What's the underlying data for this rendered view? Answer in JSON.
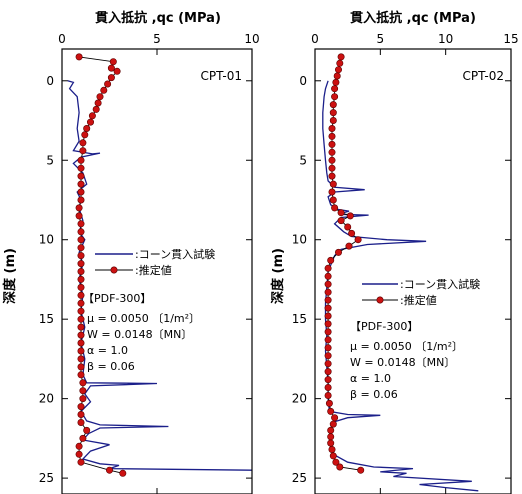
{
  "chart_data": [
    {
      "type": "line",
      "title": "貫入抵抗 ,qc (MPa)",
      "ylabel": "深度 (m)",
      "label": "CPT-01",
      "xlim": [
        0,
        10
      ],
      "ylim": [
        26,
        -2
      ],
      "xticks": [
        0,
        5,
        10
      ],
      "yticks": [
        0,
        5,
        10,
        15,
        20,
        25
      ],
      "grid": false,
      "legend_position": "center-right",
      "series": [
        {
          "name": ":コーン貫入試験",
          "color": "#1b1f8a",
          "marker": "none",
          "points": [
            [
              0.3,
              0
            ],
            [
              0.6,
              0.1
            ],
            [
              0.4,
              0.5
            ],
            [
              0.8,
              1
            ],
            [
              0.9,
              2
            ],
            [
              0.8,
              3
            ],
            [
              0.9,
              3.8
            ],
            [
              0.6,
              4.4
            ],
            [
              1.6,
              4.6
            ],
            [
              2.0,
              4.55
            ],
            [
              1.0,
              4.8
            ],
            [
              0.6,
              5.2
            ],
            [
              1.1,
              5.8
            ],
            [
              1.3,
              6.5
            ],
            [
              0.8,
              7
            ],
            [
              1.0,
              7.5
            ],
            [
              0.9,
              8
            ],
            [
              1.1,
              8.8
            ],
            [
              0.9,
              9.5
            ],
            [
              1.2,
              10
            ],
            [
              0.9,
              10.8
            ],
            [
              1.1,
              11.5
            ],
            [
              0.9,
              12.5
            ],
            [
              1.1,
              13.5
            ],
            [
              1.0,
              14.5
            ],
            [
              1.2,
              15.5
            ],
            [
              1.0,
              16.5
            ],
            [
              1.2,
              17.5
            ],
            [
              1.1,
              18.5
            ],
            [
              1.3,
              19
            ],
            [
              5.0,
              19.05
            ],
            [
              1.5,
              19.2
            ],
            [
              1.2,
              19.7
            ],
            [
              1.5,
              20.2
            ],
            [
              1.0,
              20.8
            ],
            [
              1.3,
              21.4
            ],
            [
              2.0,
              21.65
            ],
            [
              5.6,
              21.75
            ],
            [
              2.0,
              21.85
            ],
            [
              1.4,
              22.2
            ],
            [
              1.1,
              22.6
            ],
            [
              2.5,
              22.9
            ],
            [
              1.5,
              23.3
            ],
            [
              1.1,
              23.8
            ],
            [
              2.0,
              24.1
            ],
            [
              3.0,
              24.2
            ],
            [
              2.5,
              24.4
            ],
            [
              10.0,
              24.5
            ]
          ]
        },
        {
          "name": ":推定値",
          "color": "#cc1111",
          "marker": "circle",
          "points": [
            [
              0.9,
              -1.5
            ],
            [
              2.7,
              -1.2
            ],
            [
              2.6,
              -0.8
            ],
            [
              2.9,
              -0.6
            ],
            [
              2.6,
              -0.2
            ],
            [
              2.4,
              0.2
            ],
            [
              2.2,
              0.6
            ],
            [
              2.0,
              1
            ],
            [
              1.9,
              1.4
            ],
            [
              1.8,
              1.8
            ],
            [
              1.6,
              2.2
            ],
            [
              1.5,
              2.6
            ],
            [
              1.3,
              3
            ],
            [
              1.2,
              3.4
            ],
            [
              1.1,
              3.9
            ],
            [
              1.1,
              4.4
            ],
            [
              1.0,
              5
            ],
            [
              1.0,
              5.5
            ],
            [
              1.0,
              6
            ],
            [
              1.0,
              6.5
            ],
            [
              1.0,
              7
            ],
            [
              1.0,
              7.5
            ],
            [
              0.9,
              8
            ],
            [
              0.9,
              8.5
            ],
            [
              1.0,
              9
            ],
            [
              1.0,
              9.5
            ],
            [
              1.0,
              10
            ],
            [
              1.0,
              10.5
            ],
            [
              1.0,
              11
            ],
            [
              1.0,
              11.5
            ],
            [
              1.0,
              12
            ],
            [
              1.0,
              12.5
            ],
            [
              1.0,
              13
            ],
            [
              1.0,
              13.5
            ],
            [
              1.0,
              14
            ],
            [
              1.0,
              14.5
            ],
            [
              1.0,
              15
            ],
            [
              1.0,
              15.5
            ],
            [
              1.0,
              16
            ],
            [
              1.0,
              16.5
            ],
            [
              1.0,
              17
            ],
            [
              1.0,
              17.5
            ],
            [
              1.0,
              18
            ],
            [
              1.0,
              18.5
            ],
            [
              1.1,
              19
            ],
            [
              1.1,
              19.5
            ],
            [
              1.1,
              20
            ],
            [
              1.0,
              20.5
            ],
            [
              1.0,
              21
            ],
            [
              1.0,
              21.5
            ],
            [
              1.3,
              22
            ],
            [
              1.1,
              22.5
            ],
            [
              0.9,
              23
            ],
            [
              0.9,
              23.5
            ],
            [
              1.0,
              24
            ],
            [
              2.5,
              24.5
            ],
            [
              3.2,
              24.7
            ]
          ]
        }
      ],
      "parameters": [
        "【PDF-300】",
        "μ = 0.0050 〔1/m²〕",
        "W = 0.0148〔MN〕",
        "α = 1.0",
        "β = 0.06"
      ]
    },
    {
      "type": "line",
      "title": "貫入抵抗 ,qc (MPa)",
      "ylabel": "深度 (m)",
      "label": "CPT-02",
      "xlim": [
        0,
        15
      ],
      "ylim": [
        26,
        -2
      ],
      "xticks": [
        0,
        5,
        10,
        15
      ],
      "yticks": [
        0,
        5,
        10,
        15,
        20,
        25
      ],
      "grid": false,
      "legend_position": "center-right",
      "series": [
        {
          "name": ":コーン貫入試験",
          "color": "#1b1f8a",
          "marker": "none",
          "points": [
            [
              1.0,
              0
            ],
            [
              0.8,
              0.5
            ],
            [
              0.7,
              1
            ],
            [
              0.6,
              2
            ],
            [
              0.6,
              3
            ],
            [
              0.7,
              4
            ],
            [
              0.8,
              5
            ],
            [
              0.9,
              5.8
            ],
            [
              1.0,
              6.3
            ],
            [
              1.5,
              6.7
            ],
            [
              3.8,
              6.85
            ],
            [
              1.5,
              7
            ],
            [
              1.0,
              7.3
            ],
            [
              1.2,
              7.8
            ],
            [
              1.8,
              8.1
            ],
            [
              2.6,
              8.2
            ],
            [
              1.8,
              8.4
            ],
            [
              4.1,
              8.45
            ],
            [
              2.0,
              8.6
            ],
            [
              1.5,
              9
            ],
            [
              2.2,
              9.5
            ],
            [
              2.8,
              9.8
            ],
            [
              5.5,
              10
            ],
            [
              8.5,
              10.1
            ],
            [
              4.0,
              10.3
            ],
            [
              2.0,
              10.6
            ],
            [
              1.5,
              11
            ],
            [
              1.0,
              12
            ],
            [
              0.9,
              13
            ],
            [
              0.8,
              14
            ],
            [
              0.8,
              15
            ],
            [
              0.9,
              16
            ],
            [
              0.8,
              17
            ],
            [
              0.9,
              18
            ],
            [
              1.0,
              19
            ],
            [
              1.0,
              20
            ],
            [
              1.1,
              20.8
            ],
            [
              2.5,
              21
            ],
            [
              5.0,
              21.05
            ],
            [
              2.5,
              21.2
            ],
            [
              1.3,
              21.5
            ],
            [
              1.2,
              22
            ],
            [
              1.2,
              22.5
            ],
            [
              1.3,
              23
            ],
            [
              1.4,
              23.5
            ],
            [
              2.5,
              24
            ],
            [
              4.5,
              24.3
            ],
            [
              7.5,
              24.4
            ],
            [
              5.0,
              24.6
            ],
            [
              7.0,
              24.7
            ],
            [
              6.0,
              24.9
            ],
            [
              12.0,
              25.2
            ],
            [
              8.0,
              25.4
            ],
            [
              10.0,
              25.6
            ],
            [
              12.5,
              25.8
            ]
          ]
        },
        {
          "name": ":推定値",
          "color": "#cc1111",
          "marker": "circle",
          "points": [
            [
              2.0,
              -1.5
            ],
            [
              1.9,
              -1.1
            ],
            [
              1.8,
              -0.7
            ],
            [
              1.7,
              -0.3
            ],
            [
              1.6,
              0.1
            ],
            [
              1.5,
              0.5
            ],
            [
              1.5,
              1
            ],
            [
              1.4,
              1.5
            ],
            [
              1.4,
              2
            ],
            [
              1.4,
              2.5
            ],
            [
              1.3,
              3
            ],
            [
              1.3,
              3.5
            ],
            [
              1.3,
              4
            ],
            [
              1.3,
              4.5
            ],
            [
              1.3,
              5
            ],
            [
              1.3,
              5.5
            ],
            [
              1.3,
              6
            ],
            [
              1.4,
              6.5
            ],
            [
              1.3,
              7
            ],
            [
              1.4,
              7.5
            ],
            [
              1.5,
              8
            ],
            [
              2.0,
              8.3
            ],
            [
              2.7,
              8.5
            ],
            [
              2.0,
              8.8
            ],
            [
              2.5,
              9.2
            ],
            [
              2.8,
              9.6
            ],
            [
              3.3,
              10
            ],
            [
              2.6,
              10.4
            ],
            [
              1.8,
              10.8
            ],
            [
              1.2,
              11.3
            ],
            [
              1.0,
              11.8
            ],
            [
              1.0,
              12.3
            ],
            [
              1.0,
              12.8
            ],
            [
              1.0,
              13.3
            ],
            [
              1.0,
              13.8
            ],
            [
              1.0,
              14.3
            ],
            [
              1.0,
              14.8
            ],
            [
              1.0,
              15.3
            ],
            [
              1.0,
              15.8
            ],
            [
              1.0,
              16.3
            ],
            [
              1.0,
              16.8
            ],
            [
              1.0,
              17.3
            ],
            [
              1.0,
              17.8
            ],
            [
              1.0,
              18.3
            ],
            [
              1.0,
              18.8
            ],
            [
              1.0,
              19.3
            ],
            [
              1.0,
              19.8
            ],
            [
              1.1,
              20.3
            ],
            [
              1.2,
              20.8
            ],
            [
              1.5,
              21.2
            ],
            [
              1.4,
              21.6
            ],
            [
              1.2,
              22
            ],
            [
              1.2,
              22.4
            ],
            [
              1.2,
              22.8
            ],
            [
              1.3,
              23.2
            ],
            [
              1.4,
              23.6
            ],
            [
              1.6,
              24
            ],
            [
              1.9,
              24.3
            ],
            [
              3.5,
              24.5
            ]
          ]
        }
      ],
      "parameters": [
        "【PDF-300】",
        "μ = 0.0050 〔1/m²〕",
        "W = 0.0148〔MN〕",
        "α = 1.0",
        "β = 0.06"
      ]
    }
  ]
}
